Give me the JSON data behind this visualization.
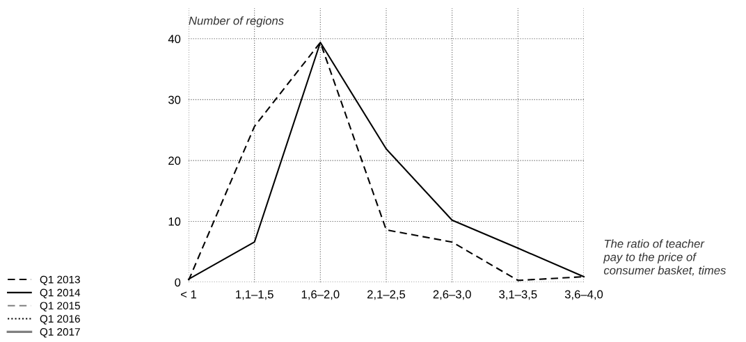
{
  "chart_data": {
    "type": "line",
    "ylabel": "Number of regions",
    "xlabel": "The ratio of teacher\npay to the price of\nconsumer basket, times",
    "categories": [
      "< 1",
      "1,1–1,5",
      "1,6–2,0",
      "2,1–2,5",
      "2,6–3,0",
      "3,1–3,5",
      "3,6–4,0"
    ],
    "series": [
      {
        "name": "Q1 2013",
        "color": "#000000",
        "line_style": "dashed",
        "values": [
          0.3,
          25.6,
          39.4,
          8.6,
          6.6,
          0.3,
          0.9
        ]
      },
      {
        "name": "Q1 2014",
        "color": "#000000",
        "line_style": "solid",
        "values": [
          0.5,
          6.6,
          39.4,
          21.9,
          10.2,
          5.6,
          0.9
        ]
      },
      {
        "name": "Q1 2015",
        "color": "#808080",
        "line_style": "dashed",
        "values": [
          null,
          null,
          null,
          null,
          null,
          null,
          null
        ]
      },
      {
        "name": "Q1 2016",
        "color": "#000000",
        "line_style": "dotted",
        "values": [
          null,
          null,
          null,
          null,
          null,
          null,
          null
        ]
      },
      {
        "name": "Q1 2017",
        "color": "#808080",
        "line_style": "solid",
        "values": [
          null,
          null,
          null,
          null,
          null,
          null,
          null
        ]
      }
    ],
    "ylim": [
      0,
      45
    ],
    "yticks": [
      0,
      10,
      20,
      30,
      40
    ],
    "grid": true,
    "legend": "bottom left"
  }
}
